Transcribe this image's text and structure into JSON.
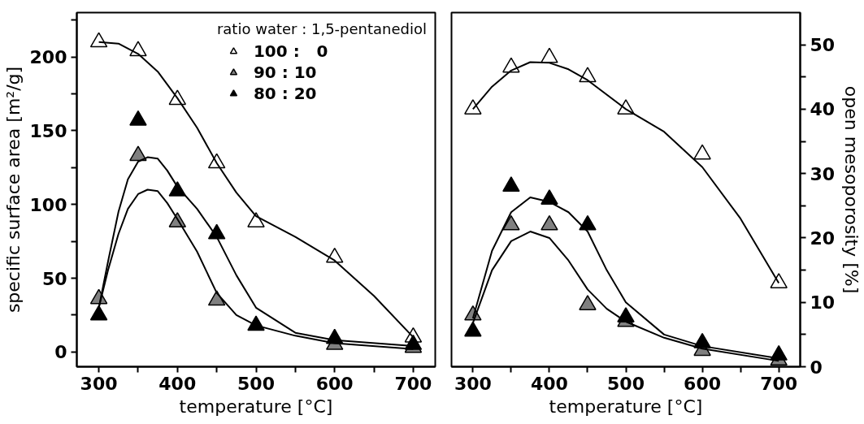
{
  "chart_data": [
    {
      "type": "scatter",
      "xlabel": "temperature [°C]",
      "ylabel": "specific surface area [m²/g]",
      "legend_title": "ratio water : 1,5-pentanediol",
      "legend": "top right",
      "marker": "triangle",
      "grid": false,
      "x": [
        300,
        350,
        400,
        450,
        500,
        600,
        700
      ],
      "xlim": [
        272,
        728
      ],
      "ylim": [
        -10,
        230
      ],
      "xticks": [
        300,
        {
          "value": 350,
          "label": null
        },
        400,
        {
          "value": 450,
          "label": null
        },
        500,
        {
          "value": 550,
          "label": null
        },
        600,
        {
          "value": 650,
          "label": null
        },
        700
      ],
      "yticks": [
        0,
        {
          "value": 25,
          "label": null
        },
        50,
        {
          "value": 75,
          "label": null
        },
        100,
        {
          "value": 125,
          "label": null
        },
        150,
        {
          "value": 175,
          "label": null
        },
        200,
        {
          "value": 225,
          "label": null
        }
      ],
      "series": [
        {
          "name": "100 :   0",
          "color": "#ffffff",
          "values": [
            210,
            204,
            171,
            128,
            88,
            64,
            10
          ]
        },
        {
          "name": "90 : 10",
          "color": "#808080",
          "values": [
            36,
            133,
            88,
            35,
            null,
            5,
            3
          ]
        },
        {
          "name": "80 : 20",
          "color": "#000000",
          "values": [
            25,
            157,
            109,
            80,
            18,
            9,
            5
          ]
        },
        {
          "type": "line",
          "marker": "none",
          "color": "#000000",
          "x": [
            300,
            325,
            350,
            375,
            400,
            425,
            450,
            475,
            500,
            550,
            600,
            650,
            700
          ],
          "values": [
            210,
            209,
            202,
            190,
            172,
            152,
            128,
            108,
            92,
            78,
            62,
            38,
            10
          ]
        },
        {
          "type": "line",
          "marker": "none",
          "color": "#000000",
          "x": [
            300,
            312,
            325,
            337,
            350,
            362,
            375,
            387,
            400,
            425,
            450,
            475,
            500,
            550,
            600,
            700
          ],
          "values": [
            30,
            62,
            95,
            117,
            129,
            132,
            131,
            123,
            112,
            97,
            78,
            52,
            30,
            13,
            8,
            4
          ]
        },
        {
          "type": "line",
          "marker": "none",
          "color": "#000000",
          "x": [
            300,
            312,
            325,
            337,
            350,
            362,
            375,
            387,
            400,
            425,
            450,
            475,
            500,
            550,
            600,
            700
          ],
          "values": [
            30,
            56,
            80,
            97,
            107,
            110,
            109,
            101,
            90,
            68,
            40,
            25,
            18,
            11,
            6,
            2
          ]
        }
      ]
    },
    {
      "type": "scatter",
      "xlabel": "temperature [°C]",
      "y2label": "open mesoporosity [%]",
      "legend": false,
      "marker": "triangle",
      "grid": false,
      "x": [
        300,
        350,
        400,
        450,
        500,
        600,
        700
      ],
      "xlim": [
        272,
        728
      ],
      "y2lim": [
        0,
        55
      ],
      "xticks": [
        300,
        {
          "value": 350,
          "label": null
        },
        400,
        {
          "value": 450,
          "label": null
        },
        500,
        {
          "value": 550,
          "label": null
        },
        600,
        {
          "value": 650,
          "label": null
        },
        700
      ],
      "y2ticks": [
        0,
        {
          "value": 5,
          "label": null
        },
        10,
        {
          "value": 15,
          "label": null
        },
        20,
        {
          "value": 25,
          "label": null
        },
        30,
        {
          "value": 35,
          "label": null
        },
        40,
        {
          "value": 45,
          "label": null
        },
        50
      ],
      "series": [
        {
          "color": "#ffffff",
          "axis": "y2",
          "values": [
            40,
            46.5,
            48,
            45,
            40,
            33,
            13
          ]
        },
        {
          "color": "#808080",
          "axis": "y2",
          "values": [
            8,
            22,
            22,
            9.6,
            7,
            2.5,
            1
          ]
        },
        {
          "color": "#000000",
          "axis": "y2",
          "values": [
            5.5,
            28,
            26,
            22,
            7.7,
            3.7,
            1.8
          ]
        },
        {
          "type": "line",
          "marker": "none",
          "color": "#000000",
          "axis": "y2",
          "x": [
            300,
            325,
            350,
            375,
            400,
            425,
            450,
            500,
            550,
            600,
            650,
            700
          ],
          "values": [
            40,
            43.5,
            46,
            47.3,
            47.2,
            46.2,
            44.5,
            40,
            36.5,
            31,
            23,
            13
          ]
        },
        {
          "type": "line",
          "marker": "none",
          "color": "#000000",
          "axis": "y2",
          "x": [
            300,
            325,
            350,
            375,
            400,
            425,
            450,
            475,
            500,
            550,
            600,
            700
          ],
          "values": [
            7.5,
            18,
            24,
            26.3,
            25.6,
            24,
            21,
            15,
            10,
            5,
            3.2,
            1.3
          ]
        },
        {
          "type": "line",
          "marker": "none",
          "color": "#000000",
          "axis": "y2",
          "x": [
            300,
            325,
            350,
            375,
            400,
            425,
            450,
            475,
            500,
            550,
            600,
            700
          ],
          "values": [
            6.8,
            15,
            19.5,
            21,
            20,
            16.5,
            12,
            9,
            7,
            4.5,
            2.8,
            0.9
          ]
        }
      ]
    }
  ]
}
